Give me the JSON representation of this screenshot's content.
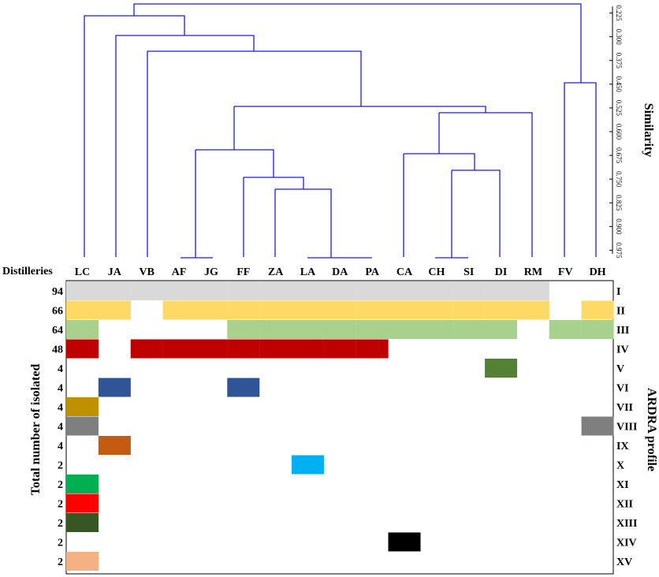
{
  "dendrogram": {
    "axis_title": "Similarity",
    "ticks": [
      "0.225",
      "0.300",
      "0.375",
      "0.450",
      "0.525",
      "0.600",
      "0.675",
      "0.750",
      "0.825",
      "0.900",
      "0.975"
    ],
    "line_color": "#1f1fd6"
  },
  "matrix": {
    "column_header": "Distilleries",
    "columns": [
      "LC",
      "JA",
      "VB",
      "AF",
      "JG",
      "FF",
      "ZA",
      "LA",
      "DA",
      "PA",
      "CA",
      "CH",
      "SI",
      "DI",
      "RM",
      "FV",
      "DH"
    ],
    "left_axis_title": "Total number of isolated",
    "right_axis_title": "ARDRA profile",
    "rows": [
      {
        "profile": "I",
        "total": "94",
        "color": "#d9d9d9",
        "cols": [
          "LC",
          "JA",
          "VB",
          "AF",
          "JG",
          "FF",
          "ZA",
          "LA",
          "DA",
          "PA",
          "CA",
          "CH",
          "SI",
          "DI",
          "RM"
        ]
      },
      {
        "profile": "II",
        "total": "66",
        "color": "#ffd966",
        "cols": [
          "LC",
          "JA",
          "AF",
          "JG",
          "FF",
          "ZA",
          "LA",
          "DA",
          "PA",
          "CA",
          "CH",
          "SI",
          "DI",
          "RM",
          "DH"
        ]
      },
      {
        "profile": "III",
        "total": "64",
        "color": "#a9d18e",
        "cols": [
          "LC",
          "FF",
          "ZA",
          "LA",
          "DA",
          "PA",
          "CA",
          "CH",
          "SI",
          "DI",
          "FV",
          "DH"
        ]
      },
      {
        "profile": "IV",
        "total": "48",
        "color": "#c00000",
        "cols": [
          "LC",
          "VB",
          "AF",
          "JG",
          "FF",
          "ZA",
          "LA",
          "DA",
          "PA"
        ]
      },
      {
        "profile": "V",
        "total": "4",
        "color": "#548235",
        "cols": [
          "DI"
        ]
      },
      {
        "profile": "VI",
        "total": "4",
        "color": "#2f5597",
        "cols": [
          "JA",
          "FF"
        ]
      },
      {
        "profile": "VII",
        "total": "4",
        "color": "#bf9000",
        "cols": [
          "LC"
        ]
      },
      {
        "profile": "VIII",
        "total": "4",
        "color": "#7f7f7f",
        "cols": [
          "LC",
          "DH"
        ]
      },
      {
        "profile": "IX",
        "total": "4",
        "color": "#c55a11",
        "cols": [
          "JA"
        ]
      },
      {
        "profile": "X",
        "total": "2",
        "color": "#00b0f0",
        "cols": [
          "LA"
        ]
      },
      {
        "profile": "XI",
        "total": "2",
        "color": "#00b050",
        "cols": [
          "LC"
        ]
      },
      {
        "profile": "XII",
        "total": "2",
        "color": "#ff0000",
        "cols": [
          "LC"
        ]
      },
      {
        "profile": "XIII",
        "total": "2",
        "color": "#375623",
        "cols": [
          "LC"
        ]
      },
      {
        "profile": "XIV",
        "total": "2",
        "color": "#000000",
        "cols": [
          "CA"
        ]
      },
      {
        "profile": "XV",
        "total": "2",
        "color": "#f4b183",
        "cols": [
          "LC"
        ]
      }
    ]
  }
}
